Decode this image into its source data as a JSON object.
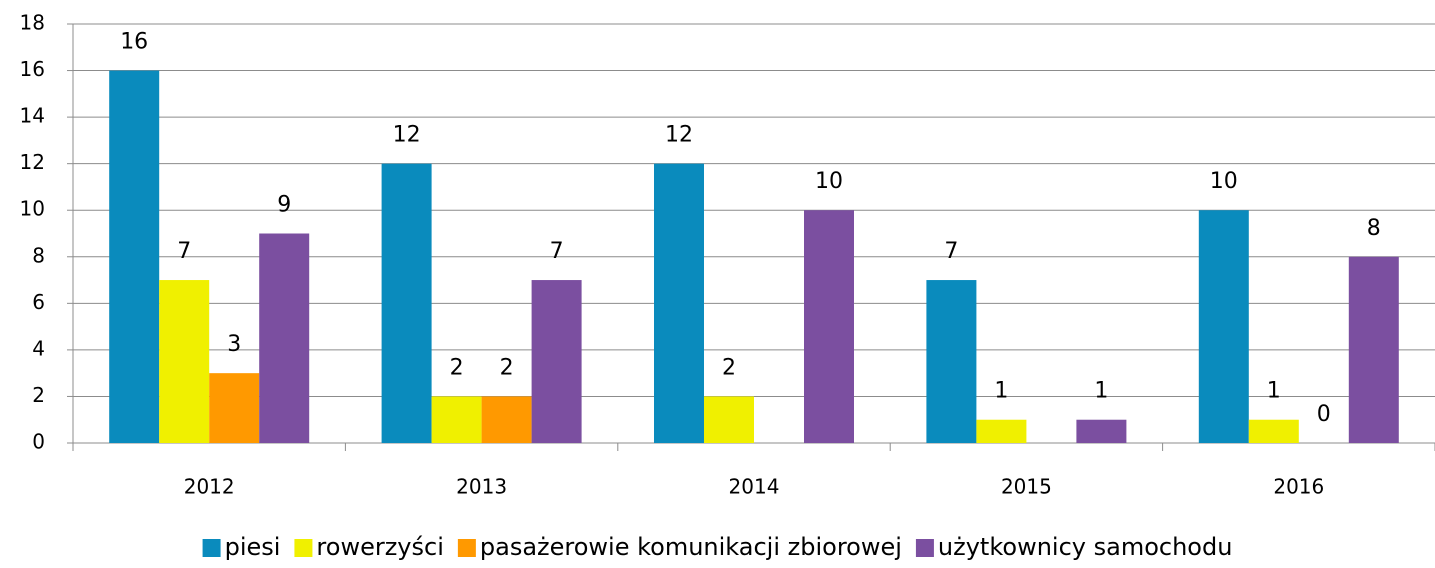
{
  "chart_data": {
    "type": "bar",
    "categories": [
      "2012",
      "2013",
      "2014",
      "2015",
      "2016"
    ],
    "series": [
      {
        "name": "piesi",
        "color": "#0a8bbd",
        "values": [
          16,
          12,
          12,
          7,
          10
        ]
      },
      {
        "name": "rowerzyści",
        "color": "#f0f000",
        "values": [
          7,
          2,
          2,
          1,
          1
        ]
      },
      {
        "name": "pasażerowie komunikacji zbiorowej",
        "color": "#ff9900",
        "values": [
          3,
          2,
          null,
          null,
          0
        ]
      },
      {
        "name": "użytkownicy samochodu",
        "color": "#7b4fa0",
        "values": [
          9,
          7,
          10,
          1,
          8
        ]
      }
    ],
    "ylim": [
      0,
      18
    ],
    "yticks": [
      0,
      2,
      4,
      6,
      8,
      10,
      12,
      14,
      16,
      18
    ],
    "grid": true,
    "legend": "bottom"
  }
}
